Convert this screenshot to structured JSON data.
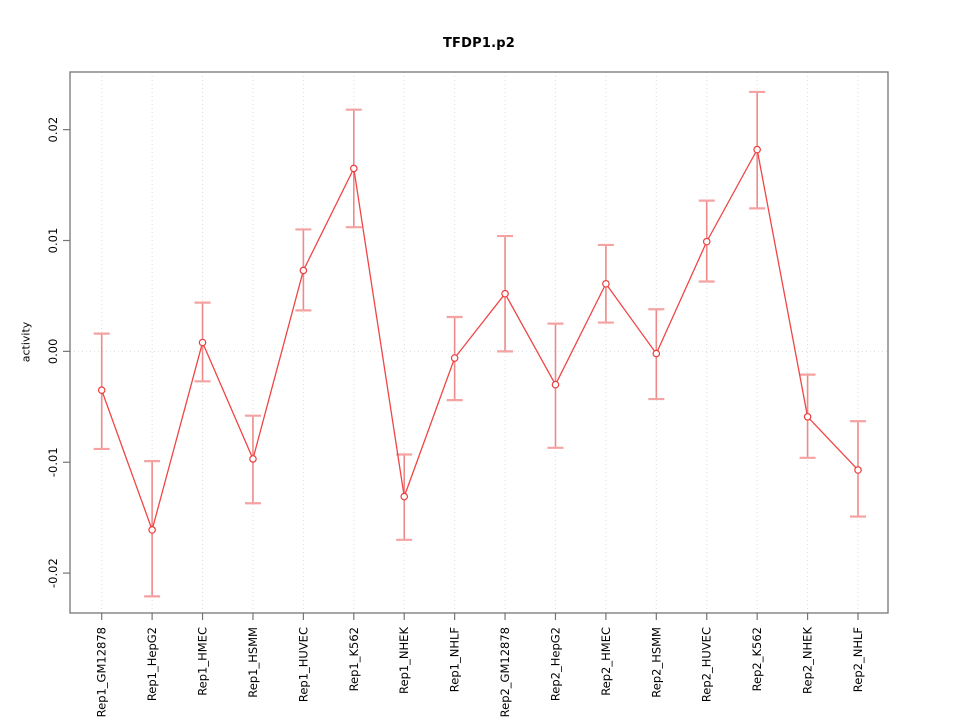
{
  "chart_data": {
    "type": "line",
    "title": "TFDP1.p2",
    "xlabel": "",
    "ylabel": "activity",
    "legend_position": "none",
    "categories": [
      "Rep1_GM12878",
      "Rep1_HepG2",
      "Rep1_HMEC",
      "Rep1_HSMM",
      "Rep1_HUVEC",
      "Rep1_K562",
      "Rep1_NHEK",
      "Rep1_NHLF",
      "Rep2_GM12878",
      "Rep2_HepG2",
      "Rep2_HMEC",
      "Rep2_HSMM",
      "Rep2_HUVEC",
      "Rep2_K562",
      "Rep2_NHEK",
      "Rep2_NHLF"
    ],
    "series": [
      {
        "name": "activity",
        "marker": "open-circle",
        "values": [
          -0.0035,
          -0.0161,
          0.0008,
          -0.0097,
          0.0073,
          0.0165,
          -0.0131,
          -0.0006,
          0.0052,
          -0.003,
          0.0061,
          -0.0002,
          0.0099,
          0.0182,
          -0.0059,
          -0.0107
        ],
        "error_upper": [
          0.0016,
          -0.0099,
          0.0044,
          -0.0058,
          0.011,
          0.0218,
          -0.0093,
          0.0031,
          0.0104,
          0.0025,
          0.0096,
          0.0038,
          0.0136,
          0.0234,
          -0.0021,
          -0.0063
        ],
        "error_lower": [
          -0.0088,
          -0.0221,
          -0.0027,
          -0.0137,
          0.0037,
          0.0112,
          -0.017,
          -0.0044,
          0.0,
          -0.0087,
          0.0026,
          -0.0043,
          0.0063,
          0.0129,
          -0.0096,
          -0.0149
        ]
      }
    ],
    "ylim": [
      -0.0236,
      0.0252
    ],
    "yticks": [
      {
        "value": -0.02,
        "label": "-0.02"
      },
      {
        "value": -0.01,
        "label": "-0.01"
      },
      {
        "value": 0.0,
        "label": "0.00"
      },
      {
        "value": 0.01,
        "label": "0.01"
      },
      {
        "value": 0.02,
        "label": "0.02"
      }
    ],
    "grid": {
      "vertical": "dotted line at every category",
      "horizontal": "dotted line at y=0"
    },
    "colors": {
      "line": "#f04545",
      "point_stroke": "#ee3c3c",
      "error_stem": "#ef8a8a",
      "error_cap": "#f4a2a2",
      "grid": "#dcdcdc",
      "axis": "#757575",
      "text": "#000000",
      "background": "#ffffff"
    }
  }
}
